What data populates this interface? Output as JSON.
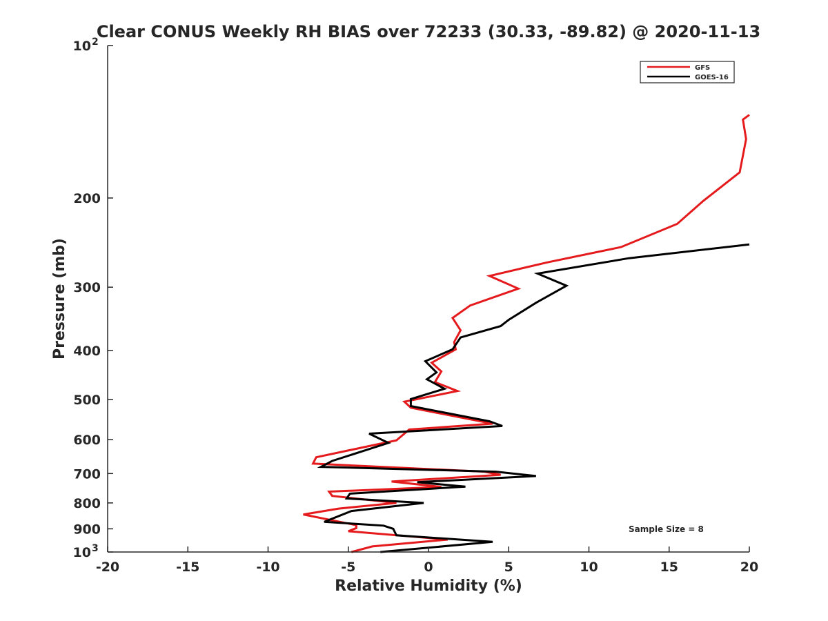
{
  "chart_data": {
    "type": "line",
    "title": "Clear CONUS Weekly RH BIAS over 72233 (30.33, -89.82) @ 2020-11-13",
    "xlabel": "Relative Humidity (%)",
    "ylabel": "Pressure (mb)",
    "xlim": [
      -20,
      20
    ],
    "ylim": [
      100,
      1000
    ],
    "y_scale": "log",
    "y_reversed": true,
    "x_ticks": [
      {
        "value": -20,
        "label": "-20"
      },
      {
        "value": -15,
        "label": "-15"
      },
      {
        "value": -10,
        "label": "-10"
      },
      {
        "value": -5,
        "label": "-5"
      },
      {
        "value": 0,
        "label": "0"
      },
      {
        "value": 5,
        "label": "5"
      },
      {
        "value": 10,
        "label": "10"
      },
      {
        "value": 15,
        "label": "15"
      },
      {
        "value": 20,
        "label": "20"
      }
    ],
    "y_ticks": [
      {
        "value": 100,
        "label": "10",
        "exp": "2"
      },
      {
        "value": 200,
        "label": "200"
      },
      {
        "value": 300,
        "label": "300"
      },
      {
        "value": 400,
        "label": "400"
      },
      {
        "value": 500,
        "label": "500"
      },
      {
        "value": 600,
        "label": "600"
      },
      {
        "value": 700,
        "label": "700"
      },
      {
        "value": 800,
        "label": "800"
      },
      {
        "value": 900,
        "label": "900"
      },
      {
        "value": 1000,
        "label": "10",
        "exp": "3"
      }
    ],
    "legend_position": "top-right",
    "grid": false,
    "annotation": "Sample Size = 8",
    "series": [
      {
        "name": "GFS",
        "color": "#e41a1c",
        "points": [
          [
            20.0,
            137
          ],
          [
            19.6,
            140
          ],
          [
            19.8,
            153
          ],
          [
            19.4,
            178
          ],
          [
            17.1,
            203
          ],
          [
            15.5,
            225
          ],
          [
            12.0,
            250
          ],
          [
            7.4,
            268
          ],
          [
            3.8,
            285
          ],
          [
            5.6,
            302
          ],
          [
            2.6,
            326
          ],
          [
            1.5,
            345
          ],
          [
            2.0,
            365
          ],
          [
            1.6,
            385
          ],
          [
            1.7,
            398
          ],
          [
            0.2,
            423
          ],
          [
            0.8,
            440
          ],
          [
            0.4,
            462
          ],
          [
            1.8,
            481
          ],
          [
            -1.5,
            505
          ],
          [
            -1.1,
            519
          ],
          [
            4.0,
            558
          ],
          [
            -1.2,
            573
          ],
          [
            -2.0,
            602
          ],
          [
            -3.0,
            611
          ],
          [
            -7.0,
            650
          ],
          [
            -7.2,
            669
          ],
          [
            3.5,
            694
          ],
          [
            4.5,
            704
          ],
          [
            -2.3,
            726
          ],
          [
            0.8,
            744
          ],
          [
            -6.2,
            760
          ],
          [
            -6.0,
            775
          ],
          [
            -2.0,
            800
          ],
          [
            -5.6,
            821
          ],
          [
            -7.8,
            843
          ],
          [
            -4.5,
            885
          ],
          [
            -4.5,
            897
          ],
          [
            -5.0,
            910
          ],
          [
            1.2,
            945
          ],
          [
            -3.5,
            975
          ],
          [
            -4.8,
            1000
          ]
        ]
      },
      {
        "name": "GOES-16",
        "color": "#000000",
        "points": [
          [
            20.0,
            247
          ],
          [
            12.5,
            263
          ],
          [
            6.8,
            282
          ],
          [
            8.6,
            298
          ],
          [
            6.7,
            322
          ],
          [
            5.0,
            348
          ],
          [
            4.5,
            358
          ],
          [
            2.0,
            377
          ],
          [
            1.5,
            398
          ],
          [
            -0.2,
            420
          ],
          [
            0.5,
            442
          ],
          [
            -0.1,
            456
          ],
          [
            1.0,
            476
          ],
          [
            -1.1,
            499
          ],
          [
            -1.1,
            515
          ],
          [
            3.8,
            552
          ],
          [
            4.6,
            564
          ],
          [
            -3.7,
            584
          ],
          [
            -2.5,
            609
          ],
          [
            -6.0,
            661
          ],
          [
            -6.7,
            679
          ],
          [
            4.2,
            694
          ],
          [
            6.7,
            708
          ],
          [
            -0.7,
            728
          ],
          [
            2.3,
            743
          ],
          [
            -4.9,
            767
          ],
          [
            -5.1,
            784
          ],
          [
            -0.3,
            800
          ],
          [
            -4.8,
            830
          ],
          [
            -6.5,
            872
          ],
          [
            -2.8,
            887
          ],
          [
            -2.2,
            900
          ],
          [
            -2.0,
            927
          ],
          [
            4.0,
            955
          ],
          [
            -3.0,
            1000
          ]
        ]
      }
    ]
  }
}
